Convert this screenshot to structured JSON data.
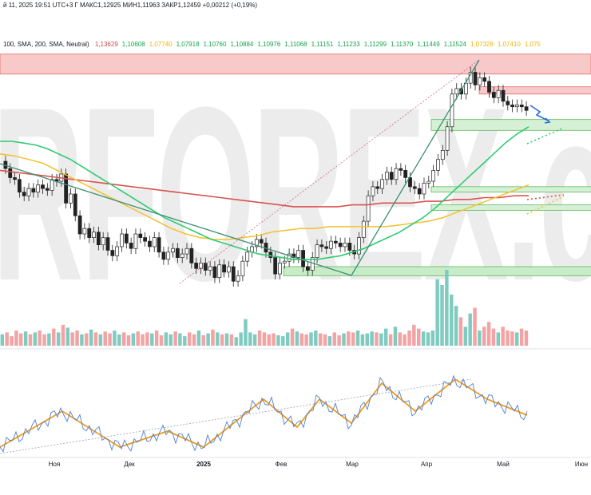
{
  "header": {
    "ohlc_line": "й 11, 2025 19:51 UTC+3",
    "ohlc_values": "Г МАКС1,12925 МИН1,11963 ЗАКР1,12459 +0,00212 (+0,19%)",
    "ma_label": "100, SMA, 200, SMA, Neutral)",
    "ma_values": [
      "1,13629",
      "1,10608",
      "1,07740",
      "1,07918",
      "1,10760",
      "1,10884",
      "1,10976",
      "1,11068",
      "1,11151",
      "1,11233",
      "1,11299",
      "1,11370",
      "1,11449",
      "1,11524",
      "1,07328",
      "1,07410",
      "1,075"
    ]
  },
  "watermark": {
    "text": "RFOREX.c"
  },
  "chart_data": {
    "type": "candlestick",
    "instrument_hint": "EUR/USD daily",
    "x_axis_labels": [
      "Ноя",
      "Дек",
      "2025",
      "Фев",
      "Мар",
      "Апр",
      "Май",
      "Июн"
    ],
    "price_range": [
      1.01,
      1.155
    ],
    "zones": [
      {
        "name": "resistance-top",
        "from": 1.145,
        "to": 1.156,
        "color": "#f7c9c9"
      },
      {
        "name": "resistance-upper",
        "from": 1.134,
        "to": 1.138,
        "color": "#f7c9c9"
      },
      {
        "name": "support-1",
        "from": 1.114,
        "to": 1.12,
        "color": "#d6f0d6"
      },
      {
        "name": "support-2",
        "from": 1.08,
        "to": 1.083,
        "color": "#d6f0d6"
      },
      {
        "name": "support-3",
        "from": 1.07,
        "to": 1.073,
        "color": "#d6f0d6"
      },
      {
        "name": "support-bottom",
        "from": 1.034,
        "to": 1.039,
        "color": "#c8ecc8"
      }
    ],
    "candles_close": [
      1.093,
      1.088,
      1.087,
      1.08,
      1.078,
      1.082,
      1.08,
      1.084,
      1.082,
      1.081,
      1.087,
      1.086,
      1.09,
      1.074,
      1.079,
      1.067,
      1.057,
      1.06,
      1.055,
      1.058,
      1.051,
      1.055,
      1.048,
      1.045,
      1.05,
      1.057,
      1.052,
      1.049,
      1.057,
      1.055,
      1.053,
      1.05,
      1.055,
      1.047,
      1.043,
      1.047,
      1.049,
      1.044,
      1.046,
      1.049,
      1.041,
      1.038,
      1.041,
      1.037,
      1.039,
      1.033,
      1.04,
      1.036,
      1.039,
      1.031,
      1.034,
      1.042,
      1.047,
      1.05,
      1.054,
      1.052,
      1.047,
      1.044,
      1.035,
      1.041,
      1.042,
      1.046,
      1.044,
      1.048,
      1.039,
      1.037,
      1.044,
      1.051,
      1.05,
      1.049,
      1.053,
      1.052,
      1.05,
      1.052,
      1.048,
      1.046,
      1.055,
      1.064,
      1.078,
      1.083,
      1.082,
      1.087,
      1.091,
      1.087,
      1.093,
      1.092,
      1.088,
      1.083,
      1.082,
      1.079,
      1.085,
      1.086,
      1.092,
      1.098,
      1.103,
      1.116,
      1.134,
      1.137,
      1.134,
      1.14,
      1.146,
      1.139,
      1.143,
      1.141,
      1.135,
      1.132,
      1.136,
      1.13,
      1.128,
      1.127,
      1.128,
      1.127,
      1.125
    ],
    "sma_100": [
      1.108,
      1.108,
      1.107,
      1.106,
      1.104,
      1.101,
      1.098,
      1.094,
      1.09,
      1.086,
      1.082,
      1.078,
      1.074,
      1.07,
      1.066,
      1.063,
      1.06,
      1.057,
      1.054,
      1.052,
      1.05,
      1.048,
      1.046,
      1.045,
      1.044,
      1.043,
      1.043,
      1.043,
      1.044,
      1.045,
      1.047,
      1.049,
      1.052,
      1.055,
      1.058,
      1.062,
      1.066,
      1.071,
      1.077,
      1.083,
      1.089,
      1.095,
      1.101,
      1.107,
      1.112,
      1.116
    ],
    "sma_200": [
      1.092,
      1.091,
      1.09,
      1.089,
      1.088,
      1.087,
      1.086,
      1.085,
      1.084,
      1.083,
      1.082,
      1.081,
      1.08,
      1.079,
      1.078,
      1.077,
      1.076,
      1.075,
      1.074,
      1.073,
      1.072,
      1.072,
      1.072,
      1.072,
      1.073,
      1.073,
      1.074,
      1.074,
      1.074,
      1.075,
      1.075,
      1.076,
      1.076,
      1.077,
      1.077,
      1.078,
      1.078
    ],
    "sma_50": [
      1.101,
      1.1,
      1.098,
      1.096,
      1.092,
      1.088,
      1.084,
      1.08,
      1.076,
      1.072,
      1.068,
      1.064,
      1.06,
      1.057,
      1.055,
      1.054,
      1.054,
      1.055,
      1.056,
      1.058,
      1.059,
      1.06,
      1.06,
      1.061,
      1.061,
      1.061,
      1.061,
      1.061,
      1.062,
      1.063,
      1.064,
      1.066,
      1.069,
      1.072,
      1.075,
      1.078,
      1.081,
      1.084
    ],
    "volume": [
      12,
      14,
      10,
      16,
      13,
      15,
      12,
      14,
      16,
      12,
      13,
      18,
      14,
      22,
      19,
      14,
      16,
      12,
      13,
      17,
      14,
      12,
      15,
      13,
      16,
      12,
      14,
      11,
      13,
      15,
      12,
      14,
      13,
      16,
      11,
      14,
      12,
      15,
      13,
      10,
      14,
      12,
      16,
      11,
      13,
      17,
      14,
      12,
      13,
      12,
      9,
      14,
      28,
      14,
      12,
      16,
      14,
      12,
      13,
      11,
      10,
      14,
      18,
      15,
      13,
      12,
      14,
      16,
      13,
      12,
      10,
      14,
      11,
      13,
      15,
      14,
      16,
      12,
      13,
      15,
      14,
      13,
      18,
      12,
      20,
      14,
      12,
      16,
      22,
      18,
      15,
      14,
      16,
      70,
      64,
      80,
      54,
      42,
      30,
      20,
      34,
      40,
      16,
      20,
      25,
      18,
      14,
      20,
      16,
      15,
      14,
      18,
      16
    ]
  }
}
